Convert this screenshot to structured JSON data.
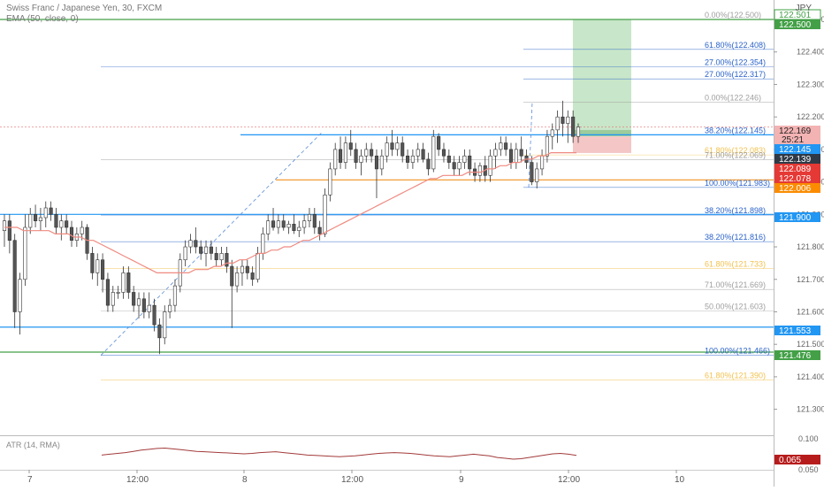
{
  "header": {
    "symbol_line": "Swiss Franc / Japanese Yen, 30, FXCM",
    "indicator_line": "EMA (50, close, 0)"
  },
  "currency_label": "JPY",
  "atr_label": "ATR (14, RMA)",
  "countdown": "25:21",
  "colors": {
    "candle_up": "#ffffff",
    "candle_down": "#555555",
    "ema": "#ef8a80",
    "blue_level": "#2196f3",
    "green_level": "#43a047",
    "orange_level": "#f29d38",
    "fib_blue": "#2a62c9",
    "fib_orange": "#f2c14e",
    "fib_gray": "#9e9e9e",
    "target_zone": "#c8e6c9",
    "stop_zone": "#f4c6c6",
    "atr_line": "#a33a3a"
  },
  "price_axis": {
    "ticks": [
      "122.500",
      "122.400",
      "122.300",
      "122.200",
      "122.100",
      "122.000",
      "121.900",
      "121.800",
      "121.700",
      "121.600",
      "121.500",
      "121.400",
      "121.300"
    ],
    "atr_ticks": [
      "0.100",
      "0.050"
    ]
  },
  "price_tags": [
    {
      "value": "122.501",
      "style": "green-outline"
    },
    {
      "value": "122.500",
      "style": "green"
    },
    {
      "value": "122.169",
      "style": "pink"
    },
    {
      "value": "122.145",
      "style": "blue"
    },
    {
      "value": "122.139",
      "style": "dark"
    },
    {
      "value": "122.089",
      "style": "red"
    },
    {
      "value": "122.078",
      "style": "red"
    },
    {
      "value": "122.006",
      "style": "orange"
    },
    {
      "value": "121.900",
      "style": "blue"
    },
    {
      "value": "121.553",
      "style": "blue"
    },
    {
      "value": "121.476",
      "style": "green"
    },
    {
      "value": "0.065",
      "style": "darkred"
    }
  ],
  "fib_labels": [
    {
      "text": "0.00%(122.500)",
      "price": 122.5,
      "color": "fib_gray"
    },
    {
      "text": "61.80%(122.408)",
      "price": 122.408,
      "color": "fib_blue"
    },
    {
      "text": "27.00%(122.354)",
      "price": 122.354,
      "color": "fib_blue"
    },
    {
      "text": "27.00%(122.317)",
      "price": 122.317,
      "color": "fib_blue"
    },
    {
      "text": "0.00%(122.246)",
      "price": 122.246,
      "color": "fib_gray"
    },
    {
      "text": "38.20%(122.145)",
      "price": 122.145,
      "color": "fib_blue"
    },
    {
      "text": "61.80%(122.083)",
      "price": 122.083,
      "color": "fib_orange"
    },
    {
      "text": "71.00%(122.069)",
      "price": 122.069,
      "color": "fib_gray"
    },
    {
      "text": "100.00%(121.983)",
      "price": 121.983,
      "color": "fib_blue"
    },
    {
      "text": "38.20%(121.898)",
      "price": 121.898,
      "color": "fib_blue"
    },
    {
      "text": "38.20%(121.816)",
      "price": 121.816,
      "color": "fib_blue"
    },
    {
      "text": "61.80%(121.733)",
      "price": 121.733,
      "color": "fib_orange"
    },
    {
      "text": "71.00%(121.669)",
      "price": 121.669,
      "color": "fib_gray"
    },
    {
      "text": "50.00%(121.603)",
      "price": 121.603,
      "color": "fib_gray"
    },
    {
      "text": "100.00%(121.466)",
      "price": 121.466,
      "color": "fib_blue"
    },
    {
      "text": "61.80%(121.390)",
      "price": 121.39,
      "color": "fib_orange"
    }
  ],
  "time_axis": [
    "7",
    "12:00",
    "8",
    "12:00",
    "9",
    "12:00",
    "10"
  ],
  "chart_data": {
    "type": "candlestick",
    "instrument": "Swiss Franc / Japanese Yen",
    "timeframe_minutes": 30,
    "ylim": [
      121.22,
      122.56
    ],
    "key_levels": [
      122.5,
      122.145,
      122.006,
      121.9,
      121.553,
      121.476
    ],
    "ohlc": [
      [
        121.85,
        121.9,
        121.8,
        121.88
      ],
      [
        121.88,
        121.9,
        121.78,
        121.82
      ],
      [
        121.82,
        121.84,
        121.55,
        121.6
      ],
      [
        121.6,
        121.72,
        121.53,
        121.7
      ],
      [
        121.7,
        121.9,
        121.68,
        121.86
      ],
      [
        121.86,
        121.92,
        121.84,
        121.9
      ],
      [
        121.9,
        121.93,
        121.86,
        121.88
      ],
      [
        121.88,
        121.92,
        121.85,
        121.89
      ],
      [
        121.89,
        121.94,
        121.86,
        121.92
      ],
      [
        121.92,
        121.94,
        121.88,
        121.9
      ],
      [
        121.9,
        121.92,
        121.84,
        121.86
      ],
      [
        121.86,
        121.9,
        121.82,
        121.88
      ],
      [
        121.88,
        121.9,
        121.84,
        121.86
      ],
      [
        121.86,
        121.88,
        121.8,
        121.82
      ],
      [
        121.82,
        121.86,
        121.8,
        121.84
      ],
      [
        121.84,
        121.88,
        121.82,
        121.86
      ],
      [
        121.86,
        121.87,
        121.76,
        121.78
      ],
      [
        121.78,
        121.8,
        121.7,
        121.72
      ],
      [
        121.72,
        121.78,
        121.68,
        121.76
      ],
      [
        121.76,
        121.78,
        121.66,
        121.7
      ],
      [
        121.7,
        121.72,
        121.6,
        121.62
      ],
      [
        121.62,
        121.68,
        121.6,
        121.66
      ],
      [
        121.66,
        121.68,
        121.64,
        121.66
      ],
      [
        121.66,
        121.74,
        121.64,
        121.72
      ],
      [
        121.72,
        121.74,
        121.64,
        121.66
      ],
      [
        121.66,
        121.68,
        121.6,
        121.62
      ],
      [
        121.62,
        121.66,
        121.58,
        121.64
      ],
      [
        121.64,
        121.66,
        121.58,
        121.6
      ],
      [
        121.6,
        121.66,
        121.58,
        121.62
      ],
      [
        121.62,
        121.64,
        121.54,
        121.56
      ],
      [
        121.56,
        121.58,
        121.47,
        121.52
      ],
      [
        121.52,
        121.62,
        121.5,
        121.6
      ],
      [
        121.6,
        121.64,
        121.58,
        121.62
      ],
      [
        121.62,
        121.7,
        121.6,
        121.68
      ],
      [
        121.68,
        121.78,
        121.66,
        121.76
      ],
      [
        121.76,
        121.82,
        121.74,
        121.8
      ],
      [
        121.8,
        121.84,
        121.78,
        121.82
      ],
      [
        121.82,
        121.86,
        121.78,
        121.8
      ],
      [
        121.8,
        121.82,
        121.76,
        121.78
      ],
      [
        121.78,
        121.82,
        121.74,
        121.8
      ],
      [
        121.8,
        121.82,
        121.76,
        121.78
      ],
      [
        121.78,
        121.8,
        121.74,
        121.76
      ],
      [
        121.76,
        121.8,
        121.74,
        121.78
      ],
      [
        121.78,
        121.8,
        121.72,
        121.74
      ],
      [
        121.74,
        121.76,
        121.55,
        121.68
      ],
      [
        121.68,
        121.74,
        121.66,
        121.72
      ],
      [
        121.72,
        121.76,
        121.68,
        121.74
      ],
      [
        121.74,
        121.76,
        121.7,
        121.72
      ],
      [
        121.72,
        121.74,
        121.68,
        121.7
      ],
      [
        121.7,
        121.8,
        121.69,
        121.78
      ],
      [
        121.78,
        121.86,
        121.76,
        121.84
      ],
      [
        121.84,
        121.9,
        121.82,
        121.88
      ],
      [
        121.88,
        121.92,
        121.85,
        121.86
      ],
      [
        121.86,
        121.9,
        121.84,
        121.88
      ],
      [
        121.88,
        121.9,
        121.85,
        121.86
      ],
      [
        121.86,
        121.88,
        121.84,
        121.87
      ],
      [
        121.87,
        121.9,
        121.84,
        121.85
      ],
      [
        121.85,
        121.88,
        121.83,
        121.86
      ],
      [
        121.86,
        121.9,
        121.84,
        121.88
      ],
      [
        121.88,
        121.92,
        121.86,
        121.9
      ],
      [
        121.9,
        121.92,
        121.84,
        121.86
      ],
      [
        121.86,
        121.88,
        121.82,
        121.84
      ],
      [
        121.84,
        121.98,
        121.83,
        121.96
      ],
      [
        121.96,
        122.06,
        121.94,
        122.04
      ],
      [
        122.04,
        122.12,
        122.02,
        122.1
      ],
      [
        122.1,
        122.14,
        122.04,
        122.06
      ],
      [
        122.06,
        122.14,
        122.04,
        122.12
      ],
      [
        122.12,
        122.16,
        122.08,
        122.1
      ],
      [
        122.1,
        122.12,
        122.04,
        122.06
      ],
      [
        122.06,
        122.1,
        122.02,
        122.08
      ],
      [
        122.08,
        122.12,
        122.06,
        122.1
      ],
      [
        122.1,
        122.12,
        122.06,
        122.08
      ],
      [
        122.08,
        122.1,
        121.95,
        122.04
      ],
      [
        122.04,
        122.1,
        122.02,
        122.08
      ],
      [
        122.08,
        122.14,
        122.06,
        122.12
      ],
      [
        122.12,
        122.16,
        122.08,
        122.1
      ],
      [
        122.1,
        122.14,
        122.08,
        122.12
      ],
      [
        122.12,
        122.14,
        122.06,
        122.08
      ],
      [
        122.08,
        122.1,
        122.04,
        122.06
      ],
      [
        122.06,
        122.1,
        122.04,
        122.08
      ],
      [
        122.08,
        122.12,
        122.06,
        122.1
      ],
      [
        122.1,
        122.12,
        122.06,
        122.07
      ],
      [
        122.07,
        122.09,
        122.02,
        122.04
      ],
      [
        122.04,
        122.16,
        122.03,
        122.14
      ],
      [
        122.14,
        122.15,
        122.08,
        122.1
      ],
      [
        122.1,
        122.12,
        122.06,
        122.08
      ],
      [
        122.08,
        122.1,
        122.04,
        122.06
      ],
      [
        122.06,
        122.08,
        122.02,
        122.04
      ],
      [
        122.04,
        122.08,
        122.02,
        122.06
      ],
      [
        122.06,
        122.1,
        122.04,
        122.08
      ],
      [
        122.08,
        122.1,
        122.02,
        122.04
      ],
      [
        122.04,
        122.06,
        122.0,
        122.02
      ],
      [
        122.02,
        122.06,
        122.0,
        122.05
      ],
      [
        122.05,
        122.08,
        122.0,
        122.02
      ],
      [
        122.02,
        122.1,
        122.0,
        122.08
      ],
      [
        122.08,
        122.12,
        122.04,
        122.1
      ],
      [
        122.1,
        122.14,
        122.08,
        122.12
      ],
      [
        122.12,
        122.14,
        122.08,
        122.1
      ],
      [
        122.1,
        122.12,
        122.04,
        122.06
      ],
      [
        122.06,
        122.12,
        122.04,
        122.1
      ],
      [
        122.1,
        122.14,
        122.06,
        122.08
      ],
      [
        122.08,
        122.1,
        122.04,
        122.06
      ],
      [
        122.06,
        122.08,
        121.99,
        122.0
      ],
      [
        122.0,
        122.06,
        121.98,
        122.04
      ],
      [
        122.04,
        122.1,
        122.02,
        122.08
      ],
      [
        122.08,
        122.16,
        122.06,
        122.14
      ],
      [
        122.14,
        122.18,
        122.1,
        122.16
      ],
      [
        122.16,
        122.22,
        122.12,
        122.2
      ],
      [
        122.2,
        122.25,
        122.14,
        122.18
      ],
      [
        122.18,
        122.22,
        122.12,
        122.2
      ],
      [
        122.2,
        122.22,
        122.12,
        122.14
      ],
      [
        122.14,
        122.18,
        122.12,
        122.169
      ]
    ],
    "ema": [
      121.86,
      121.86,
      121.86,
      121.85,
      121.85,
      121.85,
      121.85,
      121.85,
      121.84,
      121.84,
      121.84,
      121.83,
      121.83,
      121.82,
      121.82,
      121.81,
      121.8,
      121.79,
      121.78,
      121.77,
      121.76,
      121.75,
      121.74,
      121.73,
      121.72,
      121.72,
      121.72,
      121.72,
      121.72,
      121.72,
      121.73,
      121.73,
      121.73,
      121.74,
      121.74,
      121.75,
      121.75,
      121.76,
      121.76,
      121.77,
      121.78,
      121.78,
      121.79,
      121.79,
      121.8,
      121.8,
      121.81,
      121.82,
      121.82,
      121.83,
      121.84,
      121.85,
      121.86,
      121.87,
      121.88,
      121.89,
      121.9,
      121.91,
      121.92,
      121.93,
      121.94,
      121.95,
      121.96,
      121.97,
      121.98,
      121.99,
      122.0,
      122.01,
      122.01,
      122.02,
      122.02,
      122.02,
      122.02,
      122.03,
      122.03,
      122.03,
      122.04,
      122.04,
      122.05,
      122.05,
      122.06,
      122.06,
      122.07,
      122.07,
      122.08,
      122.08,
      122.09,
      122.09,
      122.09,
      122.09,
      122.09
    ],
    "atr": [
      0.066,
      0.068,
      0.07,
      0.072,
      0.075,
      0.078,
      0.08,
      0.082,
      0.083,
      0.081,
      0.079,
      0.077,
      0.075,
      0.074,
      0.073,
      0.072,
      0.071,
      0.07,
      0.069,
      0.07,
      0.072,
      0.073,
      0.074,
      0.072,
      0.07,
      0.068,
      0.066,
      0.065,
      0.064,
      0.063,
      0.062,
      0.063,
      0.064,
      0.066,
      0.068,
      0.07,
      0.071,
      0.072,
      0.071,
      0.07,
      0.068,
      0.066,
      0.064,
      0.063,
      0.062,
      0.064,
      0.066,
      0.068,
      0.066,
      0.064,
      0.06,
      0.058,
      0.056,
      0.057,
      0.06,
      0.063,
      0.066,
      0.069,
      0.07,
      0.068,
      0.065
    ]
  }
}
